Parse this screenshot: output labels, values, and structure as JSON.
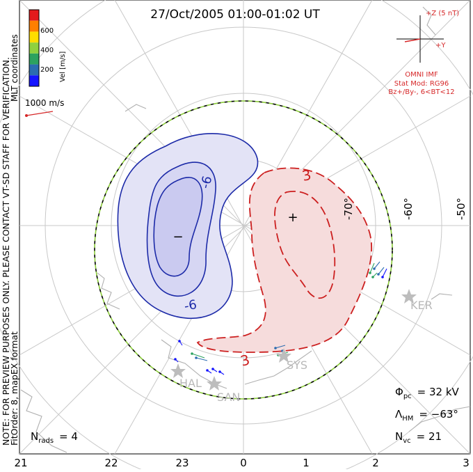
{
  "title": "27/Oct/2005 01:00-01:02 UT",
  "side_note": "NOTE: FOR PREVIEW PURPOSES ONLY. PLEASE CONTACT VT-SD STAFF FOR VERIFICATION.",
  "fit_order": "FitOrder: 8, mapEX format",
  "coord_label": "MLT coordinates",
  "colorbar": {
    "label": "Vel [m/s]",
    "ticks": [
      "600",
      "400",
      "200"
    ],
    "colors": [
      "#e31a1c",
      "#ff7f00",
      "#ffdd00",
      "#8fd13f",
      "#2ca25f",
      "#2b6cb0",
      "#1414ff"
    ]
  },
  "vector_scale": {
    "label": "1000 m/s",
    "color": "#d62728"
  },
  "imf": {
    "z_label": "+Z (5 nT)",
    "y_label": "+Y",
    "source": "OMNI IMF",
    "stat_mod": "Stat Mod: RG96",
    "condition": "Bz+/By-, 6<BT<12",
    "color": "#d62728"
  },
  "latitude_labels": [
    "-70°",
    "-60°",
    "-50°"
  ],
  "mlt_labels": [
    "21",
    "22",
    "23",
    "0",
    "1",
    "2",
    "3"
  ],
  "stations": [
    "KER",
    "SYS",
    "HAL",
    "SAN"
  ],
  "contours": {
    "negative_label": "-6",
    "negative_label_2": "-6",
    "positive_label": "3",
    "positive_label_2": "3",
    "min_marker": "−",
    "max_marker": "+"
  },
  "stats": {
    "phi_pc": {
      "symbol": "Φ",
      "sub": "pc",
      "value": "= 32 kV"
    },
    "lambda_hm": {
      "symbol": "Λ",
      "sub": "HM",
      "value": "= −63°"
    },
    "n_vc": {
      "symbol": "N",
      "sub": "vc",
      "value": "= 21"
    }
  },
  "n_rads": {
    "symbol": "N",
    "sub": "rads",
    "value": "= 4"
  },
  "colors": {
    "negative_fill": "#e3e3f6",
    "negative_fill_2": "#cacaf0",
    "negative_line": "#1c2aa8",
    "positive_fill": "#f6dcdc",
    "positive_line": "#cc1f1f",
    "boundary_green": "#8ccc3c",
    "grid": "#c8c8c8",
    "coast": "#b0b0b0"
  }
}
